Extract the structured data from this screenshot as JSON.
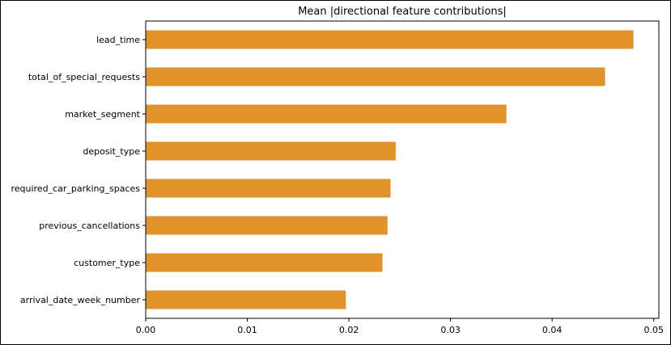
{
  "chart_data": {
    "type": "bar",
    "orientation": "horizontal",
    "title": "Mean |directional feature contributions|",
    "xlabel": "",
    "ylabel": "",
    "categories": [
      "lead_time",
      "total_of_special_requests",
      "market_segment",
      "deposit_type",
      "required_car_parking_spaces",
      "previous_cancellations",
      "customer_type",
      "arrival_date_week_number"
    ],
    "values": [
      0.048,
      0.0452,
      0.0355,
      0.0246,
      0.0241,
      0.0238,
      0.0233,
      0.0197
    ],
    "xlim": [
      0.0,
      0.0505
    ],
    "xticks": [
      0.0,
      0.01,
      0.02,
      0.03,
      0.04,
      0.05
    ],
    "xtick_labels": [
      "0.00",
      "0.01",
      "0.02",
      "0.03",
      "0.04",
      "0.05"
    ],
    "bar_color": "#e0922b",
    "grid": false,
    "legend": "none"
  }
}
